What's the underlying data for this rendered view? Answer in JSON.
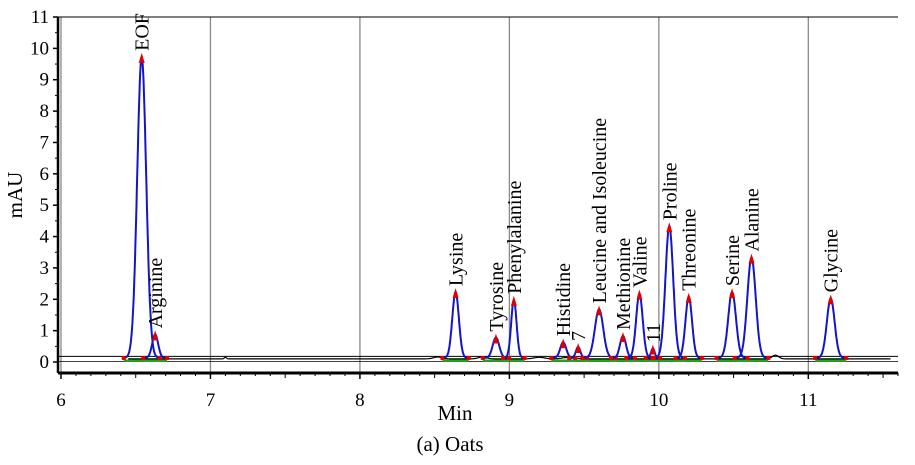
{
  "chart_data": {
    "type": "line",
    "xlabel": "Min",
    "ylabel": "mAU",
    "caption": "(a) Oats",
    "xlim": [
      5.98,
      11.6
    ],
    "ylim": [
      -0.35,
      11
    ],
    "x_ticks": [
      6,
      7,
      8,
      9,
      10,
      11
    ],
    "y_ticks": [
      0,
      1,
      2,
      3,
      4,
      5,
      6,
      7,
      8,
      9,
      10,
      11
    ],
    "grid": true,
    "baseline_value": 0.13,
    "peaks": [
      {
        "label": "EOF",
        "x": 6.54,
        "height": 9.6,
        "width": 0.03
      },
      {
        "label": "Arginine",
        "x": 6.63,
        "height": 0.75,
        "width": 0.02
      },
      {
        "label": "Lysine",
        "x": 8.64,
        "height": 2.1,
        "width": 0.022
      },
      {
        "label": "Tyrosine",
        "x": 8.91,
        "height": 0.65,
        "width": 0.022
      },
      {
        "label": "Phenylalanine",
        "x": 9.03,
        "height": 1.85,
        "width": 0.018
      },
      {
        "label": "Histidine",
        "x": 9.36,
        "height": 0.5,
        "width": 0.02
      },
      {
        "label": "7",
        "x": 9.46,
        "height": 0.35,
        "width": 0.015
      },
      {
        "label": "Leucine and Isoleucine",
        "x": 9.6,
        "height": 1.55,
        "width": 0.028
      },
      {
        "label": "Methionine",
        "x": 9.76,
        "height": 0.7,
        "width": 0.02
      },
      {
        "label": "Valine",
        "x": 9.87,
        "height": 2.05,
        "width": 0.022
      },
      {
        "label": "11",
        "x": 9.96,
        "height": 0.3,
        "width": 0.012
      },
      {
        "label": "Proline",
        "x": 10.07,
        "height": 4.2,
        "width": 0.026
      },
      {
        "label": "Threonine",
        "x": 10.2,
        "height": 1.95,
        "width": 0.022
      },
      {
        "label": "Serine",
        "x": 10.49,
        "height": 2.1,
        "width": 0.026
      },
      {
        "label": "Alanine",
        "x": 10.62,
        "height": 3.2,
        "width": 0.028
      },
      {
        "label": "Glycine",
        "x": 11.15,
        "height": 1.9,
        "width": 0.026
      }
    ],
    "colors": {
      "trace": "#1515c8",
      "peak_apex": "#e00000",
      "integration_baseline": "#00bb00",
      "gridline": "#8a8a8a",
      "axes": "#000000"
    }
  }
}
